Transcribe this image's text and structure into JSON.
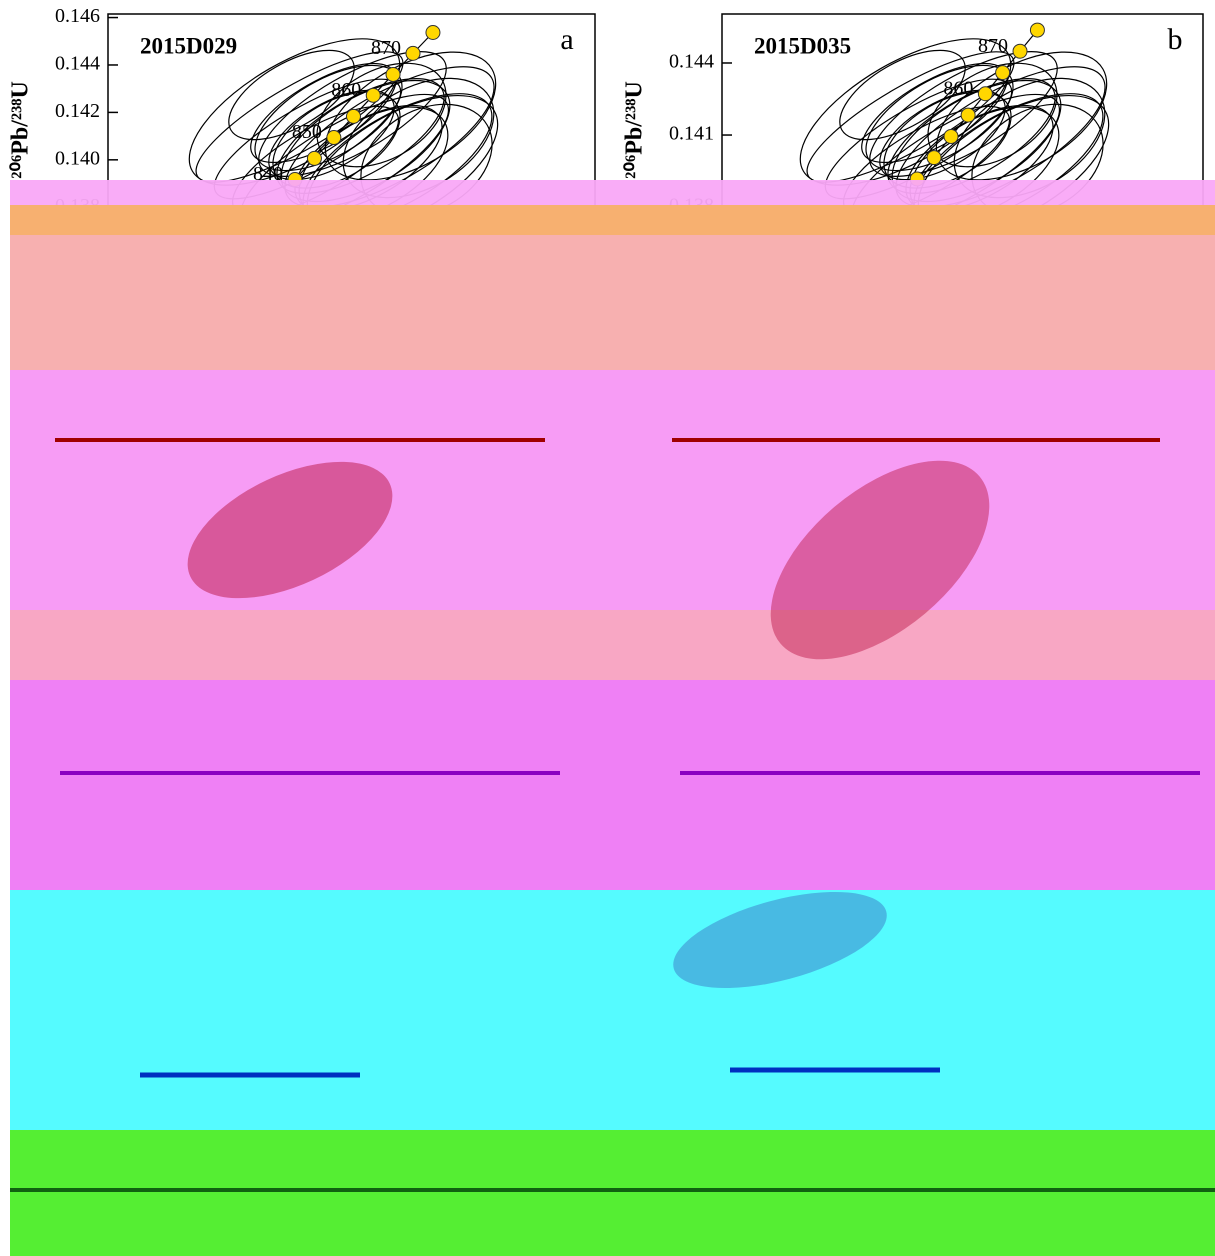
{
  "chart_data": [
    {
      "type": "scatter",
      "title": "2015D029",
      "panel_label": "a",
      "y_label": "²⁰⁶Pb/²³⁸U",
      "xlim": [
        1.1784,
        1.4615
      ],
      "ylim": [
        0.13742,
        0.14615
      ],
      "yticks": [
        0.146,
        0.144,
        0.142,
        {
          "value": 0.14,
          "label": "0.140"
        },
        0.138
      ],
      "color": "#ffd700",
      "x": [
        1.2871,
        1.2984,
        1.3097,
        1.3211,
        1.3326,
        1.3441,
        1.3557,
        1.3673
      ],
      "values": [
        0.13917,
        0.14006,
        0.14094,
        0.14183,
        0.14272,
        0.1436,
        0.14449,
        0.14537
      ],
      "point_labels": [
        "840",
        null,
        "850",
        null,
        "860",
        null,
        "870",
        null
      ]
    },
    {
      "type": "scatter",
      "title": "2015D035",
      "panel_label": "b",
      "y_label": "²⁰⁶Pb/²³⁸U",
      "xlim": [
        1.157,
        1.4777
      ],
      "ylim": [
        0.13742,
        0.14604
      ],
      "yticks": [
        0.144,
        0.141,
        0.138
      ],
      "color": "#ffd700",
      "x": [
        1.2871,
        1.2984,
        1.3097,
        1.3211,
        1.3326,
        1.3441,
        1.3557,
        1.3673
      ],
      "values": [
        0.13917,
        0.14006,
        0.14094,
        0.14183,
        0.14272,
        0.1436,
        0.14449,
        0.14537
      ],
      "point_labels": [
        null,
        null,
        null,
        null,
        "860",
        null,
        "870",
        null
      ]
    }
  ]
}
